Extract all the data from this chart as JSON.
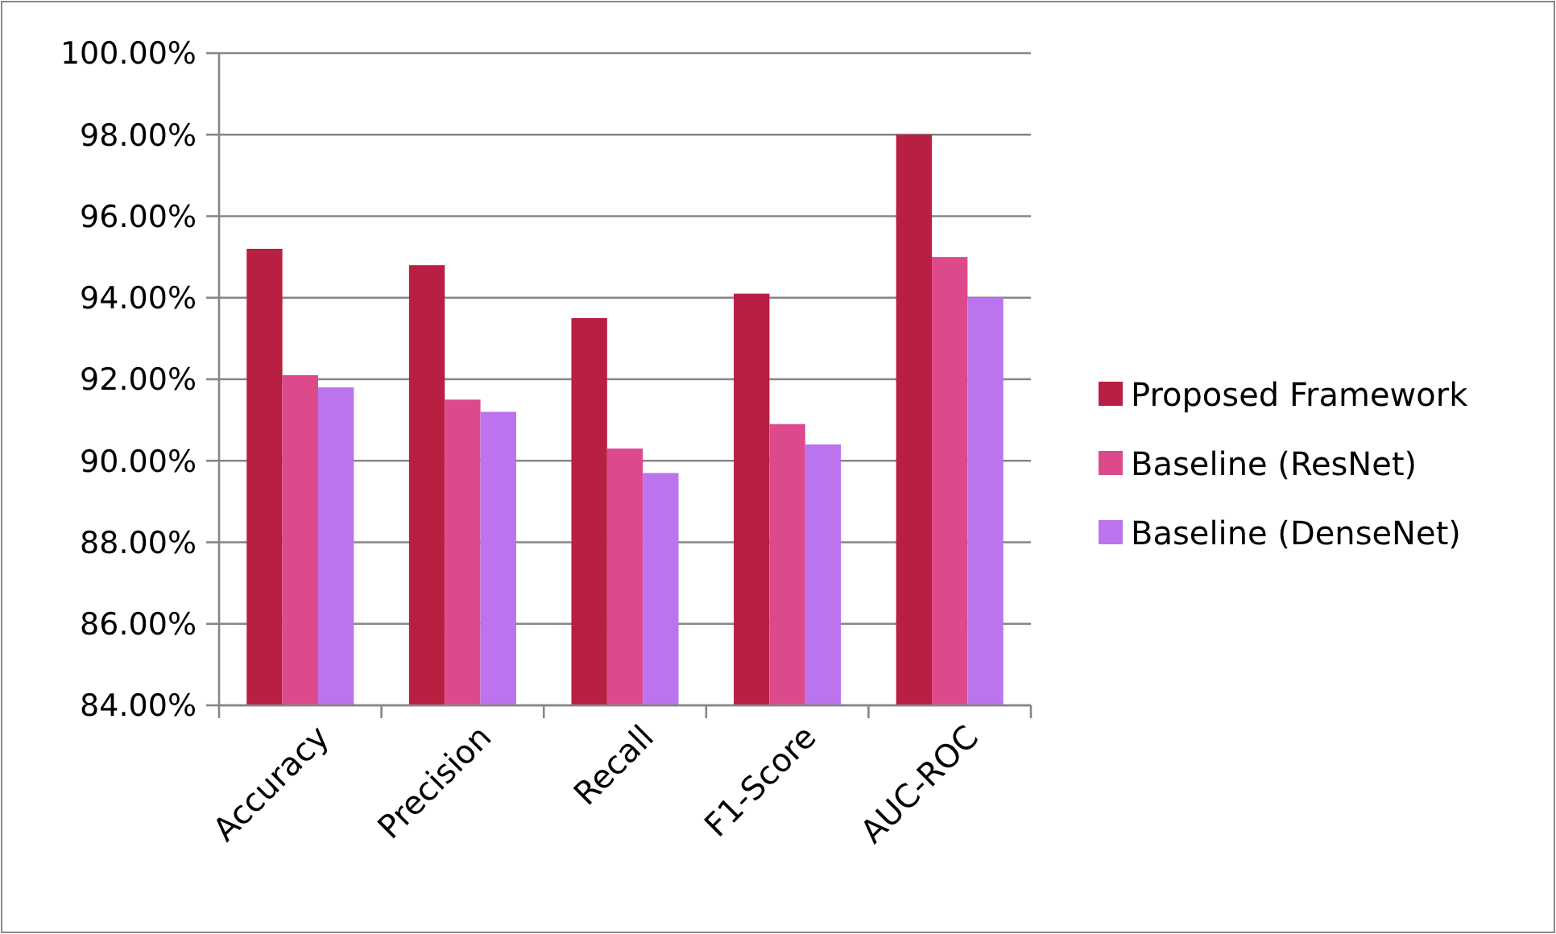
{
  "chart_data": {
    "type": "bar",
    "categories": [
      "Accuracy",
      "Precision",
      "Recall",
      "F1-Score",
      "AUC-ROC"
    ],
    "series": [
      {
        "name": "Proposed Framework",
        "color": "#b81f42",
        "values": [
          95.2,
          94.8,
          93.5,
          94.1,
          98.0
        ]
      },
      {
        "name": "Baseline (ResNet)",
        "color": "#dd4a8c",
        "values": [
          92.1,
          91.5,
          90.3,
          90.9,
          95.0
        ]
      },
      {
        "name": "Baseline (DenseNet)",
        "color": "#bb73ee",
        "values": [
          91.8,
          91.2,
          89.7,
          90.4,
          94.0
        ]
      }
    ],
    "ylim": [
      84,
      100
    ],
    "yticks": [
      {
        "value": 84,
        "label": "84.00%"
      },
      {
        "value": 86,
        "label": "86.00%"
      },
      {
        "value": 88,
        "label": "88.00%"
      },
      {
        "value": 90,
        "label": "90.00%"
      },
      {
        "value": 92,
        "label": "92.00%"
      },
      {
        "value": 94,
        "label": "94.00%"
      },
      {
        "value": 96,
        "label": "96.00%"
      },
      {
        "value": 98,
        "label": "98.00%"
      },
      {
        "value": 100,
        "label": "100.00%"
      }
    ],
    "grid": "y",
    "legend": "right"
  }
}
